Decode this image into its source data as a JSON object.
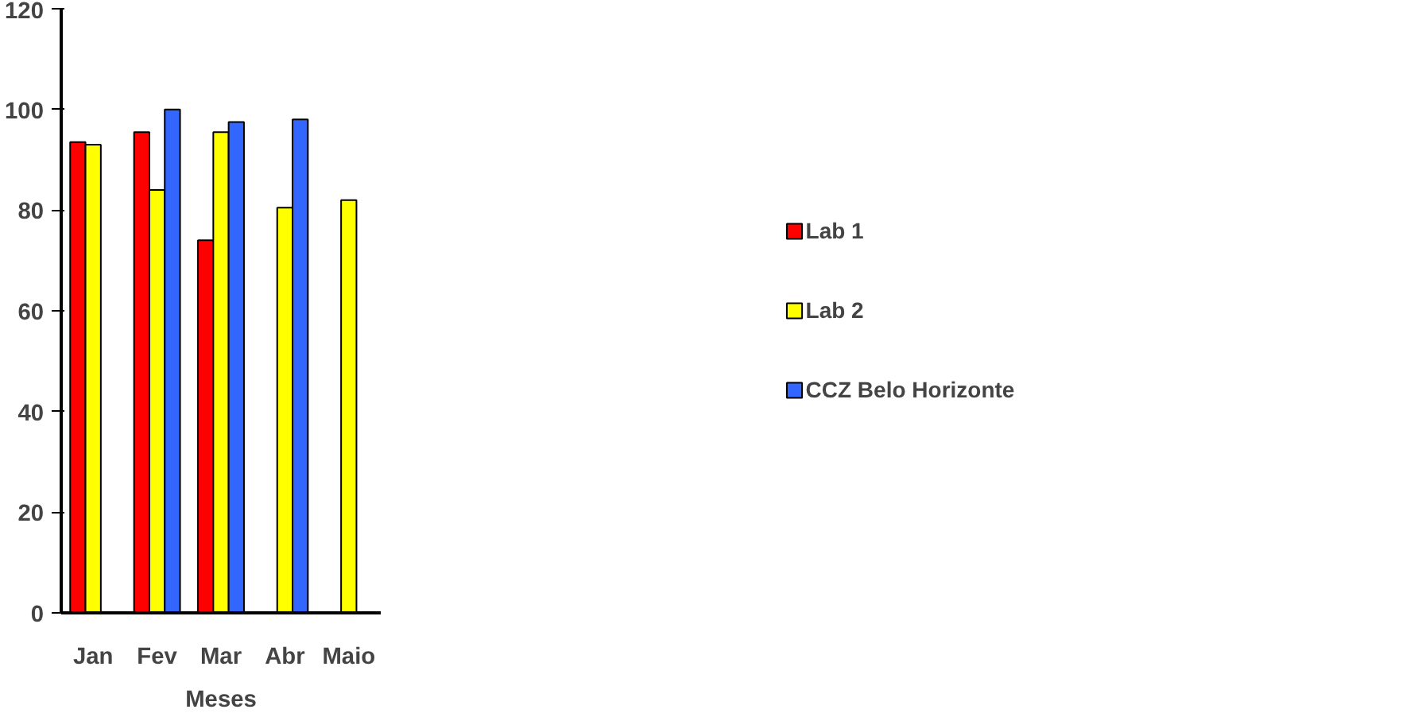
{
  "chart_data": {
    "type": "bar",
    "xlabel": "Meses",
    "categories": [
      "Jan",
      "Fev",
      "Mar",
      "Abr",
      "Maio"
    ],
    "series": [
      {
        "name": "Lab 1",
        "color": "#ff0000",
        "values": [
          93.5,
          95.5,
          74,
          null,
          null
        ]
      },
      {
        "name": "Lab 2",
        "color": "#ffff00",
        "values": [
          93,
          84,
          95.5,
          80.5,
          82
        ]
      },
      {
        "name": "CCZ Belo Horizonte",
        "color": "#3366ff",
        "values": [
          null,
          100,
          97.5,
          98,
          null
        ]
      }
    ],
    "ylim": [
      0,
      120
    ],
    "yticks": [
      0,
      20,
      40,
      60,
      80,
      100,
      120
    ],
    "grid": false,
    "legend": "right"
  }
}
